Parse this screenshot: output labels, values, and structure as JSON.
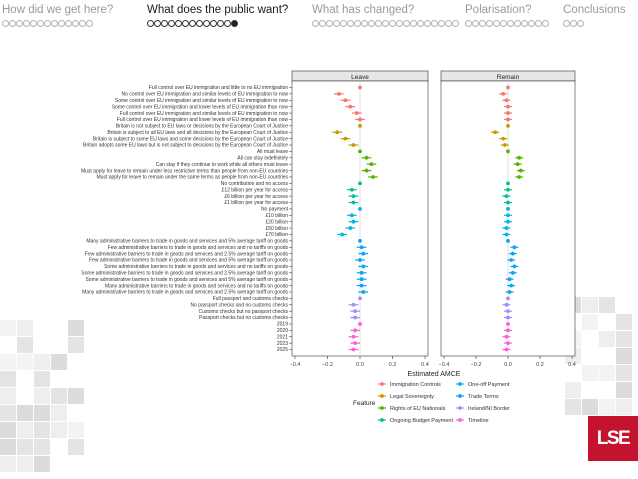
{
  "nav": {
    "sections": [
      {
        "title": "How did we get here?",
        "dots": 13,
        "current": -1
      },
      {
        "title": "What does the public want?",
        "dots": 13,
        "current": 12
      },
      {
        "title": "What has changed?",
        "dots": 21,
        "current": -1
      },
      {
        "title": "Polarisation?",
        "dots": 12,
        "current": -1
      },
      {
        "title": "Conclusions",
        "dots": 3,
        "current": -1
      }
    ]
  },
  "chart_data": {
    "type": "scatter",
    "subtype": "coefficient-plot-with-error-bars",
    "facets": [
      "Leave",
      "Remain"
    ],
    "xlabel": "Estimated AMCE",
    "xlim": [
      -0.4,
      0.4
    ],
    "xticks": [
      "−0.4",
      "−0.2",
      "0.0",
      "0.2",
      "0.4"
    ],
    "legend_title": "Feature",
    "legend_position": "bottom",
    "features": [
      {
        "name": "Immigration Controls",
        "color": "#f8766d"
      },
      {
        "name": "Legal Sovereignty",
        "color": "#c49a00"
      },
      {
        "name": "Rights of EU Nationals",
        "color": "#53b400"
      },
      {
        "name": "Ongoing Budget Payment",
        "color": "#00c094"
      },
      {
        "name": "One-off Payment",
        "color": "#00b6eb"
      },
      {
        "name": "Trade Terms",
        "color": "#06a4ff"
      },
      {
        "name": "Ireland/NI Border",
        "color": "#a58aff"
      },
      {
        "name": "Timeline",
        "color": "#fb61d7"
      }
    ],
    "legend_order": [
      0,
      4,
      1,
      5,
      2,
      6,
      3,
      7
    ],
    "rows": [
      {
        "label": "Full control over EU immigration and little to no EU immigration",
        "feature": 0,
        "leave": [
          0.0,
          0.0
        ],
        "remain": [
          0.0,
          0.0
        ]
      },
      {
        "label": "No control over EU immigration and similar levels of EU immigration to now",
        "feature": 0,
        "leave": [
          -0.13,
          0.03
        ],
        "remain": [
          -0.03,
          0.025
        ]
      },
      {
        "label": "Some control over EU immigration and similar levels of EU immigration to now",
        "feature": 0,
        "leave": [
          -0.09,
          0.03
        ],
        "remain": [
          -0.01,
          0.025
        ]
      },
      {
        "label": "Some control over EU immigration and lower levels of EU immigration than now",
        "feature": 0,
        "leave": [
          -0.06,
          0.03
        ],
        "remain": [
          0.0,
          0.025
        ]
      },
      {
        "label": "Full control over EU immigration and similar levels of EU immigration to now",
        "feature": 0,
        "leave": [
          -0.02,
          0.03
        ],
        "remain": [
          0.0,
          0.025
        ]
      },
      {
        "label": "Full control over EU immigration and lower levels of EU immigration than now",
        "feature": 0,
        "leave": [
          0.0,
          0.03
        ],
        "remain": [
          0.0,
          0.025
        ]
      },
      {
        "label": "Britain is not subject to EU laws or decisions by the European Court of Justice",
        "feature": 1,
        "leave": [
          0.0,
          0.0
        ],
        "remain": [
          0.0,
          0.0
        ]
      },
      {
        "label": "Britain is subject to all EU laws and all decisions by the European Court of Justice",
        "feature": 1,
        "leave": [
          -0.14,
          0.03
        ],
        "remain": [
          -0.08,
          0.025
        ]
      },
      {
        "label": "Britain is subject to some EU laws and some decisions by the European Court of Justice",
        "feature": 1,
        "leave": [
          -0.09,
          0.03
        ],
        "remain": [
          -0.03,
          0.025
        ]
      },
      {
        "label": "Britain adopts some EU laws but is not subject to decisions by the European Court of Justice",
        "feature": 1,
        "leave": [
          -0.04,
          0.03
        ],
        "remain": [
          -0.02,
          0.025
        ]
      },
      {
        "label": "All must leave",
        "feature": 2,
        "leave": [
          0.0,
          0.0
        ],
        "remain": [
          0.0,
          0.0
        ]
      },
      {
        "label": "All can stay indefinitely",
        "feature": 2,
        "leave": [
          0.04,
          0.03
        ],
        "remain": [
          0.07,
          0.025
        ]
      },
      {
        "label": "Can stay if they continue to work while all others must leave",
        "feature": 2,
        "leave": [
          0.07,
          0.03
        ],
        "remain": [
          0.06,
          0.025
        ]
      },
      {
        "label": "Must apply for leave to remain under less restrictive terms than people from non-EU countries",
        "feature": 2,
        "leave": [
          0.04,
          0.03
        ],
        "remain": [
          0.08,
          0.025
        ]
      },
      {
        "label": "Must apply for leave to remain under the same terms as people from non-EU countries",
        "feature": 2,
        "leave": [
          0.08,
          0.03
        ],
        "remain": [
          0.07,
          0.025
        ]
      },
      {
        "label": "No contribution and no access",
        "feature": 3,
        "leave": [
          0.0,
          0.0
        ],
        "remain": [
          0.0,
          0.0
        ]
      },
      {
        "label": "£12 billion per year for access",
        "feature": 3,
        "leave": [
          -0.05,
          0.03
        ],
        "remain": [
          0.0,
          0.025
        ]
      },
      {
        "label": "£6 billion per year for access",
        "feature": 3,
        "leave": [
          -0.04,
          0.03
        ],
        "remain": [
          -0.01,
          0.025
        ]
      },
      {
        "label": "£1 billion per year for access",
        "feature": 3,
        "leave": [
          -0.04,
          0.03
        ],
        "remain": [
          0.0,
          0.025
        ]
      },
      {
        "label": "No payment",
        "feature": 4,
        "leave": [
          0.0,
          0.0
        ],
        "remain": [
          0.0,
          0.0
        ]
      },
      {
        "label": "£10 billion",
        "feature": 4,
        "leave": [
          -0.05,
          0.03
        ],
        "remain": [
          0.0,
          0.025
        ]
      },
      {
        "label": "£20 billion",
        "feature": 4,
        "leave": [
          -0.04,
          0.03
        ],
        "remain": [
          0.0,
          0.025
        ]
      },
      {
        "label": "£50 billion",
        "feature": 4,
        "leave": [
          -0.06,
          0.03
        ],
        "remain": [
          -0.01,
          0.025
        ]
      },
      {
        "label": "£70 billion",
        "feature": 4,
        "leave": [
          -0.11,
          0.03
        ],
        "remain": [
          -0.01,
          0.025
        ]
      },
      {
        "label": "Many administrative barriers to trade in goods and services and 5% average tariff on goods",
        "feature": 5,
        "leave": [
          0.0,
          0.0
        ],
        "remain": [
          0.0,
          0.0
        ]
      },
      {
        "label": "Few administrative barriers to trade in goods and services and no tariffs on goods",
        "feature": 5,
        "leave": [
          0.01,
          0.03
        ],
        "remain": [
          0.04,
          0.025
        ]
      },
      {
        "label": "Few administrative barriers to trade in goods and services and 2.5% average tariff on goods",
        "feature": 5,
        "leave": [
          0.02,
          0.03
        ],
        "remain": [
          0.03,
          0.025
        ]
      },
      {
        "label": "Few administrative barriers to trade in goods and services and 5% average tariff on goods",
        "feature": 5,
        "leave": [
          0.0,
          0.03
        ],
        "remain": [
          0.02,
          0.025
        ]
      },
      {
        "label": "Some administrative barriers to trade in goods and services and no tariffs on goods",
        "feature": 5,
        "leave": [
          0.02,
          0.03
        ],
        "remain": [
          0.04,
          0.025
        ]
      },
      {
        "label": "Some administrative barriers to trade in goods and services and 2.5% average tariff on goods",
        "feature": 5,
        "leave": [
          0.01,
          0.03
        ],
        "remain": [
          0.03,
          0.025
        ]
      },
      {
        "label": "Some administrative barriers to trade in goods and services and 5% average tariff on goods",
        "feature": 5,
        "leave": [
          0.01,
          0.03
        ],
        "remain": [
          0.01,
          0.025
        ]
      },
      {
        "label": "Many administrative barriers to trade in goods and services and no tariffs on goods",
        "feature": 5,
        "leave": [
          0.01,
          0.03
        ],
        "remain": [
          0.02,
          0.025
        ]
      },
      {
        "label": "Many administrative barriers to trade in goods and services and 2.5% average tariff on goods",
        "feature": 5,
        "leave": [
          0.02,
          0.03
        ],
        "remain": [
          0.01,
          0.025
        ]
      },
      {
        "label": "Full passport and customs checks",
        "feature": 6,
        "leave": [
          0.0,
          0.0
        ],
        "remain": [
          0.0,
          0.0
        ]
      },
      {
        "label": "No passport checks and no customs checks",
        "feature": 6,
        "leave": [
          -0.04,
          0.03
        ],
        "remain": [
          -0.01,
          0.025
        ]
      },
      {
        "label": "Customs checks but no passport checks",
        "feature": 6,
        "leave": [
          -0.03,
          0.03
        ],
        "remain": [
          0.0,
          0.025
        ]
      },
      {
        "label": "Passport checks but no customs checks",
        "feature": 6,
        "leave": [
          -0.03,
          0.03
        ],
        "remain": [
          0.0,
          0.025
        ]
      },
      {
        "label": "2019",
        "feature": 7,
        "leave": [
          0.0,
          0.0
        ],
        "remain": [
          0.0,
          0.0
        ]
      },
      {
        "label": "2020",
        "feature": 7,
        "leave": [
          -0.03,
          0.03
        ],
        "remain": [
          0.0,
          0.025
        ]
      },
      {
        "label": "2021",
        "feature": 7,
        "leave": [
          -0.04,
          0.03
        ],
        "remain": [
          -0.01,
          0.025
        ]
      },
      {
        "label": "2023",
        "feature": 7,
        "leave": [
          -0.03,
          0.03
        ],
        "remain": [
          0.0,
          0.025
        ]
      },
      {
        "label": "2025",
        "feature": 7,
        "leave": [
          -0.04,
          0.03
        ],
        "remain": [
          -0.01,
          0.025
        ]
      }
    ]
  },
  "logo": {
    "text": "LSE"
  }
}
